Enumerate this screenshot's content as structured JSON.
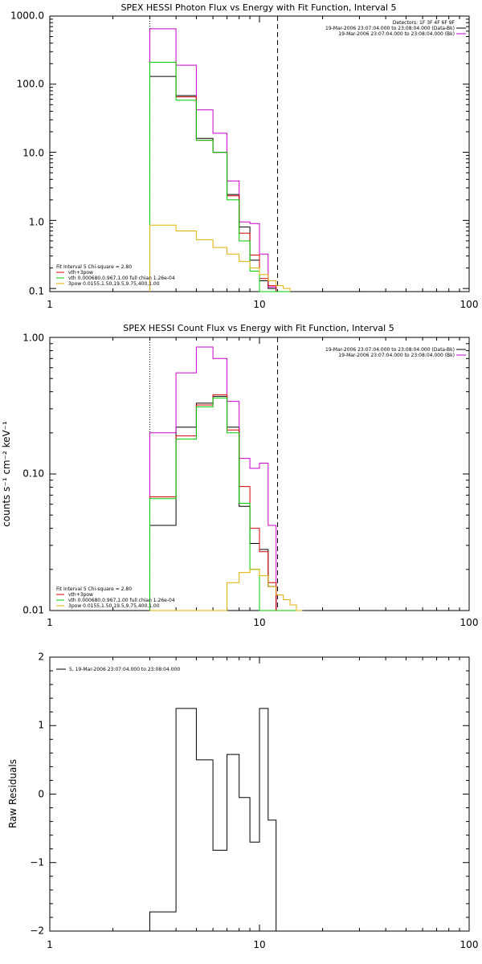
{
  "colors": {
    "black": "#000000",
    "red": "#d40000",
    "green": "#00cc00",
    "magenta": "#cc00cc",
    "orange": "#e0b000"
  },
  "chart_data": [
    {
      "type": "line",
      "step": true,
      "title": "SPEX HESSI Photon Flux vs Energy with Fit Function, Interval 5",
      "xlabel": "",
      "ylabel": "",
      "xscale": "log",
      "yscale": "log",
      "xlim": [
        1,
        100
      ],
      "ylim": [
        0.09,
        1000
      ],
      "xticks": [
        1,
        10,
        100
      ],
      "xtick_labels": [
        "1",
        "10",
        "100"
      ],
      "yticks": [
        0.1,
        1,
        10,
        100,
        1000
      ],
      "ytick_labels": [
        "0.1",
        "1.0",
        "10.0",
        "100.0",
        "1000.0"
      ],
      "edges": [
        3,
        4,
        5,
        6,
        7,
        8,
        9,
        10,
        11,
        12,
        13,
        14
      ],
      "vlines": [
        {
          "x": 3,
          "style": "dotted"
        },
        {
          "x": 12.2,
          "style": "dashed"
        }
      ],
      "info_top": [
        {
          "text": "Detectors: 1F 3F 4F 6F 9F"
        },
        {
          "text": "19-Mar-2006 23:07:04.000 to 23:08:04.000 (Data-Bk)",
          "color": "#000000"
        },
        {
          "text": "19-Mar-2006 23:07:04.000 to 23:08:04.000 (Bk)",
          "color": "#cc00cc"
        }
      ],
      "legend_header": "Fit Interval 5   Chi-square = 2.80",
      "legend_items": [
        {
          "text": "vth+3pow",
          "color": "#d40000"
        },
        {
          "text": "vth 0.000680,0.967,1.00  full chian 1.26e-04",
          "color": "#00cc00"
        },
        {
          "text": "3pow 0.0155,1.50,19.5,9.75,400,1.00",
          "color": "#e0b000"
        }
      ],
      "series": [
        {
          "name": "19-Mar-2006 23:07:04.000 to 23:08:04.000 (Data-Bk)",
          "color": "#000000",
          "values": [
            130,
            68,
            16,
            10,
            2.4,
            0.8,
            0.26,
            0.13,
            0.1,
            0.09,
            0.09
          ]
        },
        {
          "name": "19-Mar-2006 23:07:04.000 to 23:08:04.000 (Bk)",
          "color": "#cc00cc",
          "values": [
            650,
            190,
            42,
            19,
            3.8,
            0.95,
            0.9,
            0.32,
            0.105,
            0.09,
            0.09
          ]
        },
        {
          "name": "vth+3pow",
          "color": "#d40000",
          "values": [
            210,
            65,
            15,
            10,
            2.3,
            0.65,
            0.31,
            0.14,
            0.11,
            0.09,
            0.09
          ]
        },
        {
          "name": "vth",
          "color": "#00cc00",
          "values": [
            210,
            58,
            15,
            10,
            2.0,
            0.5,
            0.18,
            0.09,
            0.09,
            0.09,
            0.09
          ]
        },
        {
          "name": "3pow",
          "color": "#e0b000",
          "values": [
            0.85,
            0.7,
            0.52,
            0.4,
            0.32,
            0.25,
            0.2,
            0.16,
            0.13,
            0.11,
            0.1
          ]
        }
      ]
    },
    {
      "type": "line",
      "step": true,
      "title": "SPEX HESSI Count Flux vs Energy with Fit Function, Interval 5",
      "xlabel": "",
      "ylabel": "counts s⁻¹ cm⁻² keV⁻¹",
      "xscale": "log",
      "yscale": "log",
      "xlim": [
        1,
        100
      ],
      "ylim": [
        0.01,
        1.0
      ],
      "xticks": [
        1,
        10,
        100
      ],
      "xtick_labels": [
        "1",
        "10",
        "100"
      ],
      "yticks": [
        0.01,
        0.1,
        1.0
      ],
      "ytick_labels": [
        "0.01",
        "0.10",
        "1.00"
      ],
      "edges": [
        3,
        4,
        5,
        6,
        7,
        8,
        9,
        10,
        11,
        12,
        13,
        14,
        15,
        16
      ],
      "vlines": [
        {
          "x": 3,
          "style": "dotted"
        },
        {
          "x": 12.2,
          "style": "dashed"
        }
      ],
      "info_top": [
        {
          "text": "19-Mar-2006 23:07:04.000 to 23:08:04.000 (Data-Bk)",
          "color": "#000000"
        },
        {
          "text": "19-Mar-2006 23:07:04.000 to 23:08:04.000 (Bk)",
          "color": "#cc00cc"
        }
      ],
      "legend_header": "Fit Interval 5   Chi-square = 2.80",
      "legend_items": [
        {
          "text": "vth+3pow",
          "color": "#d40000"
        },
        {
          "text": "vth 0.000680,0.967,1.00  full chian 1.26e-04",
          "color": "#00cc00"
        },
        {
          "text": "3pow 0.0155,1.50,19.5,9.75,400,1.00",
          "color": "#e0b000"
        }
      ],
      "series": [
        {
          "name": "19-Mar-2006 23:07:04.000 to 23:08:04.000 (Data-Bk)",
          "color": "#000000",
          "values": [
            0.042,
            0.22,
            0.33,
            0.37,
            0.22,
            0.058,
            0.031,
            0.028,
            0.015,
            0.01,
            0.01,
            0.01,
            0.01
          ]
        },
        {
          "name": "19-Mar-2006 23:07:04.000 to 23:08:04.000 (Bk)",
          "color": "#cc00cc",
          "values": [
            0.2,
            0.55,
            0.85,
            0.7,
            0.34,
            0.13,
            0.11,
            0.12,
            0.042,
            0.01,
            0.01,
            0.01,
            0.01
          ]
        },
        {
          "name": "vth+3pow",
          "color": "#d40000",
          "values": [
            0.068,
            0.19,
            0.32,
            0.38,
            0.21,
            0.081,
            0.04,
            0.027,
            0.016,
            0.01,
            0.01,
            0.01,
            0.01
          ]
        },
        {
          "name": "vth",
          "color": "#00cc00",
          "values": [
            0.066,
            0.18,
            0.31,
            0.36,
            0.2,
            0.061,
            0.02,
            0.01,
            0.01,
            0.01,
            0.01,
            0.01,
            0.01
          ]
        },
        {
          "name": "3pow",
          "color": "#e0b000",
          "values": [
            0.01,
            0.01,
            0.01,
            0.01,
            0.016,
            0.019,
            0.02,
            0.018,
            0.015,
            0.013,
            0.012,
            0.011,
            0.01
          ]
        }
      ]
    },
    {
      "type": "line",
      "step": true,
      "title": "",
      "xlabel": "",
      "ylabel": "Raw Residuals",
      "xscale": "log",
      "yscale": "linear",
      "xlim": [
        1,
        100
      ],
      "ylim": [
        -2,
        2
      ],
      "xticks": [
        1,
        10,
        100
      ],
      "xtick_labels": [
        "1",
        "10",
        "100"
      ],
      "yticks": [
        -2,
        -1,
        0,
        1,
        2
      ],
      "ytick_labels": [
        "−2",
        "−1",
        "0",
        "1",
        "2"
      ],
      "edges": [
        3,
        4,
        5,
        6,
        7,
        8,
        9,
        10,
        11,
        12
      ],
      "vlines": [],
      "legend_header": "",
      "legend_items": [
        {
          "text": "5, 19-Mar-2006 23:07:04.000 to 23:08:04.000",
          "color": "#000000"
        }
      ],
      "series": [
        {
          "name": "5, 19-Mar-2006 23:07:04.000 to 23:08:04.000",
          "color": "#000000",
          "values": [
            -1.72,
            1.25,
            0.5,
            -0.82,
            0.58,
            -0.05,
            -0.7,
            1.25,
            -0.38
          ]
        }
      ]
    }
  ]
}
